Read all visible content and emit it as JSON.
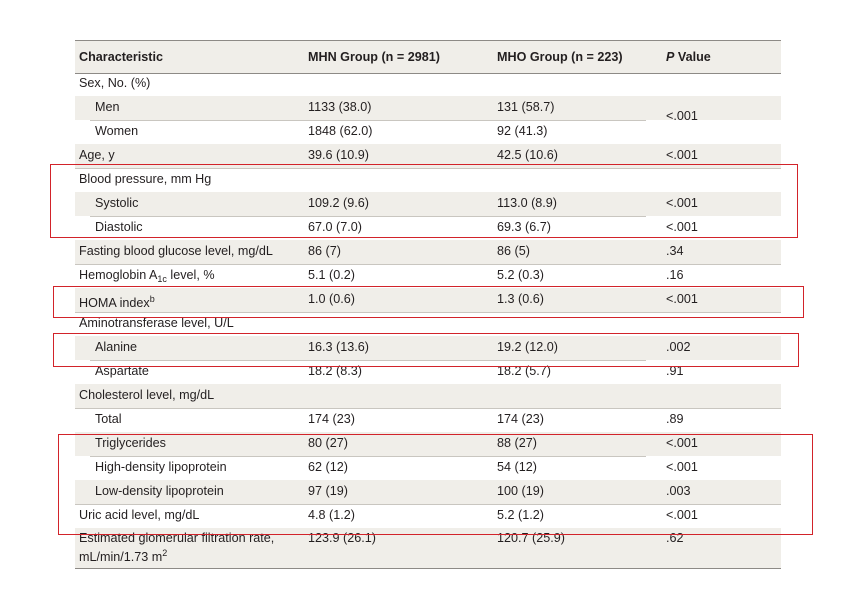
{
  "headers": {
    "characteristic": "Characteristic",
    "mhn": "MHN Group (n = 2981)",
    "mho": "MHO Group (n = 223)",
    "p_italic": "P",
    "p_rest": " Value"
  },
  "rows": [
    {
      "label": "Sex, No. (%)",
      "mhn": "",
      "mho": "",
      "p": ""
    },
    {
      "label": "Men",
      "mhn": "1133 (38.0)",
      "mho": "131 (58.7)",
      "p": ""
    },
    {
      "label": "Women",
      "mhn": "1848 (62.0)",
      "mho": "92 (41.3)",
      "p": ""
    },
    {
      "label": "Age, y",
      "mhn": "39.6 (10.9)",
      "mho": "42.5 (10.6)",
      "p": "<.001"
    },
    {
      "label": "Blood pressure, mm Hg",
      "mhn": "",
      "mho": "",
      "p": ""
    },
    {
      "label": "Systolic",
      "mhn": "109.2 (9.6)",
      "mho": "113.0 (8.9)",
      "p": "<.001"
    },
    {
      "label": "Diastolic",
      "mhn": "67.0 (7.0)",
      "mho": "69.3 (6.7)",
      "p": "<.001"
    },
    {
      "label": "Fasting blood glucose level, mg/dL",
      "mhn": "86 (7)",
      "mho": "86 (5)",
      "p": ".34"
    },
    {
      "label_a": "Hemoglobin A",
      "label_sub": "1c",
      "label_b": " level, %",
      "mhn": "5.1 (0.2)",
      "mho": "5.2 (0.3)",
      "p": ".16"
    },
    {
      "label_a": "HOMA index",
      "label_sup": "b",
      "mhn": "1.0 (0.6)",
      "mho": "1.3 (0.6)",
      "p": "<.001"
    },
    {
      "label": "Aminotransferase level, U/L",
      "mhn": "",
      "mho": "",
      "p": ""
    },
    {
      "label": "Alanine",
      "mhn": "16.3 (13.6)",
      "mho": "19.2 (12.0)",
      "p": ".002"
    },
    {
      "label": "Aspartate",
      "mhn": "18.2 (8.3)",
      "mho": "18.2 (5.7)",
      "p": ".91"
    },
    {
      "label": "Cholesterol level, mg/dL",
      "mhn": "",
      "mho": "",
      "p": ""
    },
    {
      "label": "Total",
      "mhn": "174 (23)",
      "mho": "174 (23)",
      "p": ".89"
    },
    {
      "label": "Triglycerides",
      "mhn": "80 (27)",
      "mho": "88 (27)",
      "p": "<.001"
    },
    {
      "label": "High-density lipoprotein",
      "mhn": "62 (12)",
      "mho": "54 (12)",
      "p": "<.001"
    },
    {
      "label": "Low-density lipoprotein",
      "mhn": "97 (19)",
      "mho": "100 (19)",
      "p": ".003"
    },
    {
      "label": "Uric acid level, mg/dL",
      "mhn": "4.8 (1.2)",
      "mho": "5.2 (1.2)",
      "p": "<.001"
    },
    {
      "label_line1": "Estimated glomerular filtration rate,",
      "label_line2a": "mL/min/1.73 m",
      "label_line2sup": "2",
      "mhn": "123.9 (26.1)",
      "mho": "120.7 (25.9)",
      "p": ".62"
    }
  ],
  "sex_p_value": "<.001",
  "colors": {
    "highlight": "#d2232a",
    "stripe": "#f0eee9"
  }
}
